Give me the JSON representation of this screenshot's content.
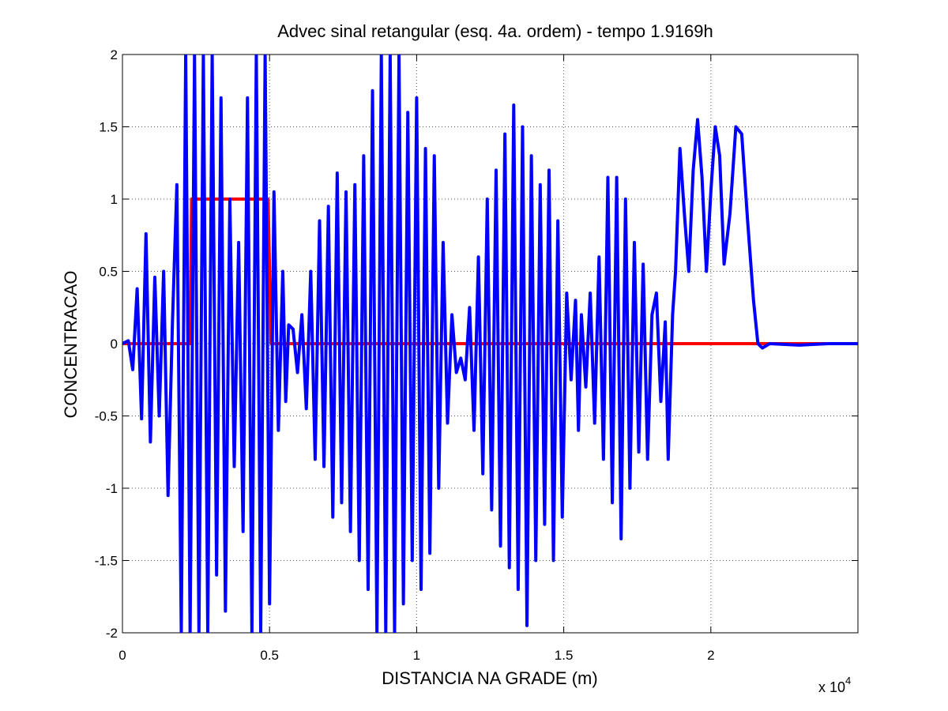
{
  "chart_data": {
    "type": "line",
    "title": "Advec sinal retangular (esq. 4a. ordem) - tempo 1.9169h",
    "xlabel": "DISTANCIA NA GRADE (m)",
    "ylabel": "CONCENTRACAO",
    "x_multiplier_label": "x 10",
    "x_multiplier_exponent": "4",
    "xlim": [
      0,
      25000
    ],
    "ylim": [
      -2,
      2
    ],
    "grid": true,
    "legend": "none",
    "x_ticks": [
      {
        "value": 0,
        "label": "0"
      },
      {
        "value": 5000,
        "label": "0.5"
      },
      {
        "value": 10000,
        "label": "1"
      },
      {
        "value": 15000,
        "label": "1.5"
      },
      {
        "value": 20000,
        "label": "2"
      }
    ],
    "y_ticks": [
      {
        "value": -2,
        "label": "-2"
      },
      {
        "value": -1.5,
        "label": "-1.5"
      },
      {
        "value": -1,
        "label": "-1"
      },
      {
        "value": -0.5,
        "label": "-0.5"
      },
      {
        "value": 0,
        "label": "0"
      },
      {
        "value": 0.5,
        "label": "0.5"
      },
      {
        "value": 1,
        "label": "1"
      },
      {
        "value": 1.5,
        "label": "1.5"
      },
      {
        "value": 2,
        "label": "2"
      }
    ],
    "series": [
      {
        "color": "#ff0000",
        "points": [
          [
            0,
            0
          ],
          [
            2300,
            0
          ],
          [
            2350,
            1
          ],
          [
            4950,
            1
          ],
          [
            5050,
            0
          ],
          [
            25000,
            0
          ]
        ]
      },
      {
        "color": "#0000ff",
        "points": [
          [
            0,
            0.0
          ],
          [
            200,
            0.02
          ],
          [
            350,
            -0.18
          ],
          [
            500,
            0.38
          ],
          [
            650,
            -0.52
          ],
          [
            800,
            0.76
          ],
          [
            950,
            -0.68
          ],
          [
            1100,
            0.46
          ],
          [
            1250,
            -0.5
          ],
          [
            1400,
            0.5
          ],
          [
            1550,
            -1.05
          ],
          [
            1700,
            0.15
          ],
          [
            1850,
            1.1
          ],
          [
            2000,
            -2.0
          ],
          [
            2150,
            2.0
          ],
          [
            2300,
            -2.0
          ],
          [
            2450,
            2.0
          ],
          [
            2600,
            -2.0
          ],
          [
            2750,
            2.0
          ],
          [
            2900,
            -2.0
          ],
          [
            3050,
            2.0
          ],
          [
            3200,
            -1.6
          ],
          [
            3350,
            1.7
          ],
          [
            3500,
            -1.85
          ],
          [
            3650,
            1.0
          ],
          [
            3800,
            -0.85
          ],
          [
            3950,
            0.7
          ],
          [
            4100,
            -1.3
          ],
          [
            4250,
            1.7
          ],
          [
            4400,
            -2.0
          ],
          [
            4550,
            2.0
          ],
          [
            4700,
            -2.0
          ],
          [
            4850,
            2.0
          ],
          [
            5000,
            -1.8
          ],
          [
            5150,
            1.05
          ],
          [
            5300,
            -0.6
          ],
          [
            5450,
            0.5
          ],
          [
            5550,
            -0.4
          ],
          [
            5650,
            0.13
          ],
          [
            5800,
            0.1
          ],
          [
            5950,
            -0.2
          ],
          [
            6100,
            0.2
          ],
          [
            6250,
            -0.45
          ],
          [
            6400,
            0.5
          ],
          [
            6550,
            -0.8
          ],
          [
            6700,
            0.85
          ],
          [
            6850,
            -0.85
          ],
          [
            7000,
            0.95
          ],
          [
            7150,
            -1.2
          ],
          [
            7300,
            1.18
          ],
          [
            7450,
            -1.1
          ],
          [
            7600,
            1.05
          ],
          [
            7750,
            -1.3
          ],
          [
            7900,
            1.1
          ],
          [
            8050,
            -1.5
          ],
          [
            8200,
            1.3
          ],
          [
            8350,
            -1.7
          ],
          [
            8500,
            1.75
          ],
          [
            8650,
            -2.0
          ],
          [
            8800,
            2.0
          ],
          [
            8950,
            -2.0
          ],
          [
            9100,
            2.0
          ],
          [
            9250,
            -2.0
          ],
          [
            9400,
            2.0
          ],
          [
            9550,
            -1.8
          ],
          [
            9700,
            1.6
          ],
          [
            9850,
            -1.5
          ],
          [
            10000,
            1.7
          ],
          [
            10150,
            -1.7
          ],
          [
            10300,
            1.35
          ],
          [
            10450,
            -1.45
          ],
          [
            10600,
            1.3
          ],
          [
            10750,
            -1.0
          ],
          [
            10900,
            0.7
          ],
          [
            11050,
            -0.55
          ],
          [
            11200,
            0.2
          ],
          [
            11350,
            -0.2
          ],
          [
            11500,
            -0.1
          ],
          [
            11650,
            -0.25
          ],
          [
            11800,
            0.25
          ],
          [
            11950,
            -0.6
          ],
          [
            12100,
            0.6
          ],
          [
            12250,
            -0.9
          ],
          [
            12400,
            1.0
          ],
          [
            12550,
            -1.15
          ],
          [
            12700,
            1.2
          ],
          [
            12850,
            -1.4
          ],
          [
            13000,
            1.45
          ],
          [
            13150,
            -1.55
          ],
          [
            13300,
            1.65
          ],
          [
            13450,
            -1.7
          ],
          [
            13600,
            1.5
          ],
          [
            13750,
            -1.95
          ],
          [
            13900,
            1.3
          ],
          [
            14050,
            -1.5
          ],
          [
            14200,
            1.1
          ],
          [
            14350,
            -1.25
          ],
          [
            14500,
            1.2
          ],
          [
            14650,
            -1.5
          ],
          [
            14800,
            0.85
          ],
          [
            14950,
            -1.2
          ],
          [
            15100,
            0.35
          ],
          [
            15250,
            -0.25
          ],
          [
            15400,
            0.3
          ],
          [
            15500,
            -0.6
          ],
          [
            15600,
            0.2
          ],
          [
            15750,
            -0.3
          ],
          [
            15900,
            0.35
          ],
          [
            16050,
            -0.55
          ],
          [
            16200,
            0.6
          ],
          [
            16350,
            -0.8
          ],
          [
            16500,
            1.15
          ],
          [
            16650,
            -1.1
          ],
          [
            16800,
            1.15
          ],
          [
            16950,
            -1.35
          ],
          [
            17100,
            1.0
          ],
          [
            17250,
            -1.0
          ],
          [
            17400,
            0.7
          ],
          [
            17550,
            -0.75
          ],
          [
            17700,
            0.55
          ],
          [
            17850,
            -0.8
          ],
          [
            18000,
            0.2
          ],
          [
            18150,
            0.35
          ],
          [
            18300,
            -0.4
          ],
          [
            18450,
            0.15
          ],
          [
            18550,
            -0.8
          ],
          [
            18700,
            0.2
          ],
          [
            18800,
            0.5
          ],
          [
            18950,
            1.35
          ],
          [
            19100,
            0.9
          ],
          [
            19250,
            0.5
          ],
          [
            19400,
            1.2
          ],
          [
            19550,
            1.55
          ],
          [
            19700,
            1.15
          ],
          [
            19850,
            0.5
          ],
          [
            20000,
            1.05
          ],
          [
            20150,
            1.5
          ],
          [
            20300,
            1.3
          ],
          [
            20450,
            0.55
          ],
          [
            20650,
            0.9
          ],
          [
            20850,
            1.5
          ],
          [
            21050,
            1.45
          ],
          [
            21250,
            0.85
          ],
          [
            21450,
            0.3
          ],
          [
            21600,
            0.0
          ],
          [
            21750,
            -0.03
          ],
          [
            22000,
            0.0
          ],
          [
            23000,
            -0.01
          ],
          [
            24000,
            0.0
          ],
          [
            25000,
            0.0
          ]
        ]
      }
    ]
  }
}
